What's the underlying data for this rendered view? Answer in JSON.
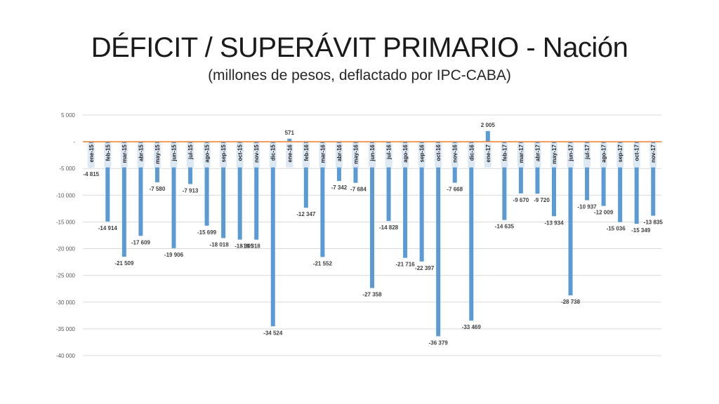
{
  "title": "DÉFICIT / SUPERÁVIT PRIMARIO - Nación",
  "subtitle": "(millones de pesos, deflactado por IPC-CABA)",
  "colors": {
    "bar": "#5b9bd5",
    "zero_line": "#ed7d31",
    "grid": "#d9d9d9",
    "label_box": "#dde8f5"
  },
  "chart_data": {
    "type": "bar",
    "categories": [
      "ene-15",
      "feb-15",
      "mar-15",
      "abr-15",
      "may-15",
      "jun-15",
      "jul-15",
      "ago-15",
      "sep-15",
      "oct-15",
      "nov-15",
      "dic-15",
      "ene-16",
      "feb-16",
      "mar-16",
      "abr-16",
      "may-16",
      "jun-16",
      "jul-16",
      "ago-16",
      "sep-16",
      "oct-16",
      "nov-16",
      "dic-16",
      "ene-17",
      "feb-17",
      "mar-17",
      "abr-17",
      "may-17",
      "jun-17",
      "jul-17",
      "ago-17",
      "sep-17",
      "oct-17",
      "nov-17"
    ],
    "values": [
      -4815,
      -14914,
      -21509,
      -17609,
      -7580,
      -19906,
      -7913,
      -15699,
      -18018,
      -18305,
      -18318,
      -34524,
      571,
      -12347,
      -21552,
      -7342,
      -7684,
      -27358,
      -14828,
      -21716,
      -22397,
      -36379,
      -7668,
      -33469,
      2005,
      -14635,
      -9670,
      -9720,
      -13934,
      -28738,
      -10937,
      -12009,
      -15036,
      -15349,
      -13835
    ],
    "data_labels": [
      "-4 815",
      "-14 914",
      "-21 509",
      "-17 609",
      "-7 580",
      "-19 906",
      "-7 913",
      "-15 699",
      "-18 018",
      "-18 305",
      "-18 318",
      "-34 524",
      "571",
      "-12 347",
      "-21 552",
      "-7 342",
      "-7 684",
      "-27 358",
      "-14 828",
      "-21 716",
      "-22 397",
      "-36 379",
      "-7 668",
      "-33 469",
      "2 005",
      "-14 635",
      "-9 670",
      "-9 720",
      "-13 934",
      "-28 738",
      "-10 937",
      "-12 009",
      "-15 036",
      "-15 349",
      "-13 835"
    ],
    "y_ticks": [
      5000,
      0,
      -5000,
      -10000,
      -15000,
      -20000,
      -25000,
      -30000,
      -35000,
      -40000
    ],
    "y_tick_labels": [
      "5 000",
      "-",
      "-5 000",
      "-10 000",
      "-15 000",
      "-20 000",
      "-25 000",
      "-30 000",
      "-35 000",
      "-40 000"
    ],
    "ylim": [
      -40000,
      5000
    ],
    "grid": true,
    "legend": "none"
  }
}
